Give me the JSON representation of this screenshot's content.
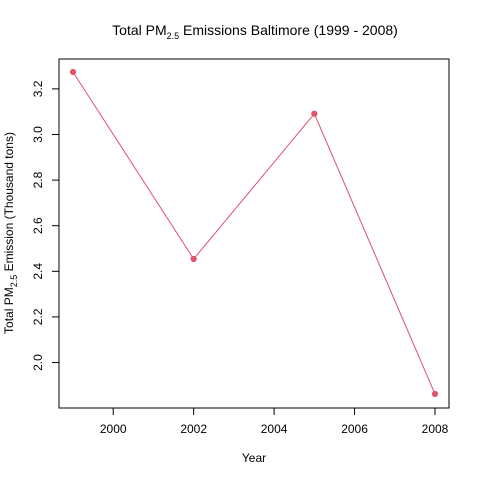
{
  "chart_data": {
    "type": "line",
    "title": {
      "prefix": "Total PM",
      "subscript": "2.5",
      "suffix": " Emissions Baltimore (1999 - 2008)"
    },
    "xlabel": "Year",
    "ylabel": {
      "prefix": "Total PM",
      "subscript": "2.5",
      "suffix": " Emission (Thousand tons)"
    },
    "x": [
      1999,
      2002,
      2005,
      2008
    ],
    "series": [
      {
        "values": [
          3.274,
          2.454,
          3.091,
          1.862
        ],
        "color": "#DF536B"
      }
    ],
    "xlim": [
      1999,
      2008
    ],
    "ylim": [
      1.862,
      3.274
    ],
    "x_ticks": [
      2000,
      2002,
      2004,
      2006,
      2008
    ],
    "x_tick_labels": [
      "2000",
      "2002",
      "2004",
      "2006",
      "2008"
    ],
    "y_ticks": [
      2.0,
      2.2,
      2.4,
      2.6,
      2.8,
      3.0,
      3.2
    ],
    "y_tick_labels": [
      "2.0",
      "2.2",
      "2.4",
      "2.6",
      "2.8",
      "3.0",
      "3.2"
    ],
    "grid": false,
    "markers": "filled-circle",
    "line_color": "#DF536B"
  }
}
